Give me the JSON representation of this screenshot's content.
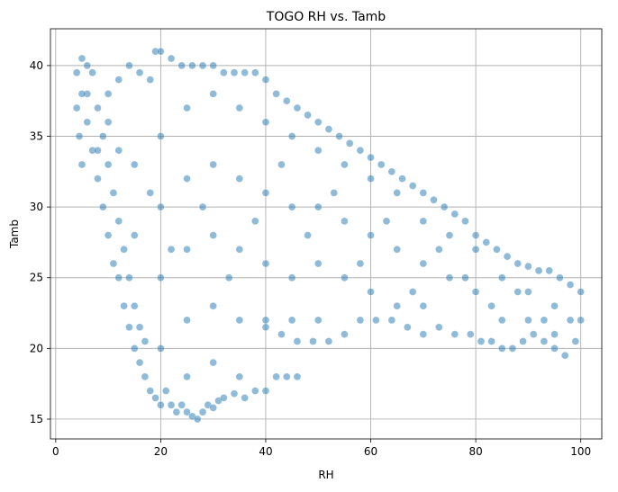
{
  "chart_data": {
    "type": "scatter",
    "title": "TOGO RH vs. Tamb",
    "xlabel": "RH",
    "ylabel": "Tamb",
    "xlim": [
      -1,
      104
    ],
    "ylim": [
      13.6,
      42.6
    ],
    "xticks": [
      0,
      20,
      40,
      60,
      80,
      100
    ],
    "yticks": [
      15,
      20,
      25,
      30,
      35,
      40
    ],
    "grid": true,
    "color": "#1f77b4",
    "point_alpha": 0.5,
    "series": [
      {
        "points": [
          [
            4,
            39.5
          ],
          [
            4,
            37
          ],
          [
            4.5,
            35
          ],
          [
            5,
            33
          ],
          [
            5,
            40.5
          ],
          [
            6,
            38
          ],
          [
            6,
            36
          ],
          [
            7,
            34
          ],
          [
            7,
            39.5
          ],
          [
            8,
            37
          ],
          [
            8,
            32
          ],
          [
            9,
            30
          ],
          [
            9,
            35
          ],
          [
            10,
            28
          ],
          [
            10,
            33
          ],
          [
            11,
            26
          ],
          [
            11,
            31
          ],
          [
            12,
            25
          ],
          [
            12,
            29
          ],
          [
            13,
            23
          ],
          [
            13,
            27
          ],
          [
            14,
            21.5
          ],
          [
            14,
            25
          ],
          [
            15,
            20
          ],
          [
            15,
            23
          ],
          [
            16,
            19
          ],
          [
            16,
            21.5
          ],
          [
            17,
            18
          ],
          [
            17,
            20.5
          ],
          [
            18,
            17
          ],
          [
            19,
            16.5
          ],
          [
            20,
            16
          ],
          [
            21,
            17
          ],
          [
            22,
            16
          ],
          [
            23,
            15.5
          ],
          [
            24,
            16
          ],
          [
            25,
            15.5
          ],
          [
            26,
            15.2
          ],
          [
            27,
            15
          ],
          [
            28,
            15.5
          ],
          [
            29,
            16
          ],
          [
            30,
            15.8
          ],
          [
            31,
            16.3
          ],
          [
            32,
            16.5
          ],
          [
            34,
            16.8
          ],
          [
            36,
            16.5
          ],
          [
            38,
            17
          ],
          [
            40,
            17
          ],
          [
            42,
            18
          ],
          [
            44,
            18
          ],
          [
            46,
            18
          ],
          [
            10,
            38
          ],
          [
            12,
            39
          ],
          [
            14,
            40
          ],
          [
            16,
            39.5
          ],
          [
            18,
            39
          ],
          [
            19,
            41
          ],
          [
            20,
            41
          ],
          [
            22,
            40.5
          ],
          [
            24,
            40
          ],
          [
            26,
            40
          ],
          [
            28,
            40
          ],
          [
            30,
            40
          ],
          [
            32,
            39.5
          ],
          [
            34,
            39.5
          ],
          [
            36,
            39.5
          ],
          [
            38,
            39.5
          ],
          [
            40,
            39
          ],
          [
            42,
            38
          ],
          [
            44,
            37.5
          ],
          [
            46,
            37
          ],
          [
            48,
            36.5
          ],
          [
            50,
            36
          ],
          [
            52,
            35.5
          ],
          [
            54,
            35
          ],
          [
            56,
            34.5
          ],
          [
            58,
            34
          ],
          [
            60,
            33.5
          ],
          [
            62,
            33
          ],
          [
            64,
            32.5
          ],
          [
            66,
            32
          ],
          [
            68,
            31.5
          ],
          [
            70,
            31
          ],
          [
            72,
            30.5
          ],
          [
            74,
            30
          ],
          [
            76,
            29.5
          ],
          [
            78,
            29
          ],
          [
            80,
            28
          ],
          [
            82,
            27.5
          ],
          [
            84,
            27
          ],
          [
            86,
            26.5
          ],
          [
            88,
            26
          ],
          [
            90,
            25.8
          ],
          [
            92,
            25.5
          ],
          [
            94,
            25.5
          ],
          [
            96,
            25
          ],
          [
            98,
            24.5
          ],
          [
            100,
            24
          ],
          [
            100,
            22
          ],
          [
            99,
            20.5
          ],
          [
            97,
            19.5
          ],
          [
            95,
            20
          ],
          [
            93,
            20.5
          ],
          [
            91,
            21
          ],
          [
            89,
            20.5
          ],
          [
            87,
            20
          ],
          [
            85,
            20
          ],
          [
            83,
            20.5
          ],
          [
            81,
            20.5
          ],
          [
            79,
            21
          ],
          [
            76,
            21
          ],
          [
            73,
            21.5
          ],
          [
            70,
            21
          ],
          [
            67,
            21.5
          ],
          [
            64,
            22
          ],
          [
            61,
            22
          ],
          [
            58,
            22
          ],
          [
            55,
            21
          ],
          [
            52,
            20.5
          ],
          [
            49,
            20.5
          ],
          [
            46,
            20.5
          ],
          [
            43,
            21
          ],
          [
            40,
            21.5
          ],
          [
            20,
            35
          ],
          [
            20,
            30
          ],
          [
            20,
            25
          ],
          [
            20,
            20
          ],
          [
            25,
            37
          ],
          [
            25,
            32
          ],
          [
            25,
            27
          ],
          [
            25,
            22
          ],
          [
            25,
            18
          ],
          [
            30,
            38
          ],
          [
            30,
            33
          ],
          [
            30,
            28
          ],
          [
            30,
            23
          ],
          [
            30,
            19
          ],
          [
            35,
            37
          ],
          [
            35,
            32
          ],
          [
            35,
            27
          ],
          [
            35,
            22
          ],
          [
            35,
            18
          ],
          [
            40,
            36
          ],
          [
            40,
            31
          ],
          [
            40,
            26
          ],
          [
            40,
            22
          ],
          [
            45,
            35
          ],
          [
            45,
            30
          ],
          [
            45,
            25
          ],
          [
            45,
            22
          ],
          [
            50,
            34
          ],
          [
            50,
            30
          ],
          [
            50,
            26
          ],
          [
            50,
            22
          ],
          [
            55,
            33
          ],
          [
            55,
            29
          ],
          [
            55,
            25
          ],
          [
            60,
            32
          ],
          [
            60,
            28
          ],
          [
            60,
            24
          ],
          [
            65,
            31
          ],
          [
            65,
            27
          ],
          [
            65,
            23
          ],
          [
            70,
            29
          ],
          [
            70,
            26
          ],
          [
            70,
            23
          ],
          [
            75,
            28
          ],
          [
            75,
            25
          ],
          [
            80,
            27
          ],
          [
            80,
            24
          ],
          [
            85,
            25
          ],
          [
            85,
            22
          ],
          [
            90,
            24
          ],
          [
            90,
            22
          ],
          [
            95,
            23
          ],
          [
            95,
            21
          ],
          [
            15,
            33
          ],
          [
            15,
            28
          ],
          [
            10,
            36
          ],
          [
            8,
            34
          ],
          [
            6,
            40
          ],
          [
            5,
            38
          ],
          [
            12,
            34
          ],
          [
            18,
            31
          ],
          [
            22,
            27
          ],
          [
            28,
            30
          ],
          [
            33,
            25
          ],
          [
            38,
            29
          ],
          [
            43,
            33
          ],
          [
            48,
            28
          ],
          [
            53,
            31
          ],
          [
            58,
            26
          ],
          [
            63,
            29
          ],
          [
            68,
            24
          ],
          [
            73,
            27
          ],
          [
            78,
            25
          ],
          [
            83,
            23
          ],
          [
            88,
            24
          ],
          [
            93,
            22
          ],
          [
            98,
            22
          ]
        ]
      }
    ]
  }
}
